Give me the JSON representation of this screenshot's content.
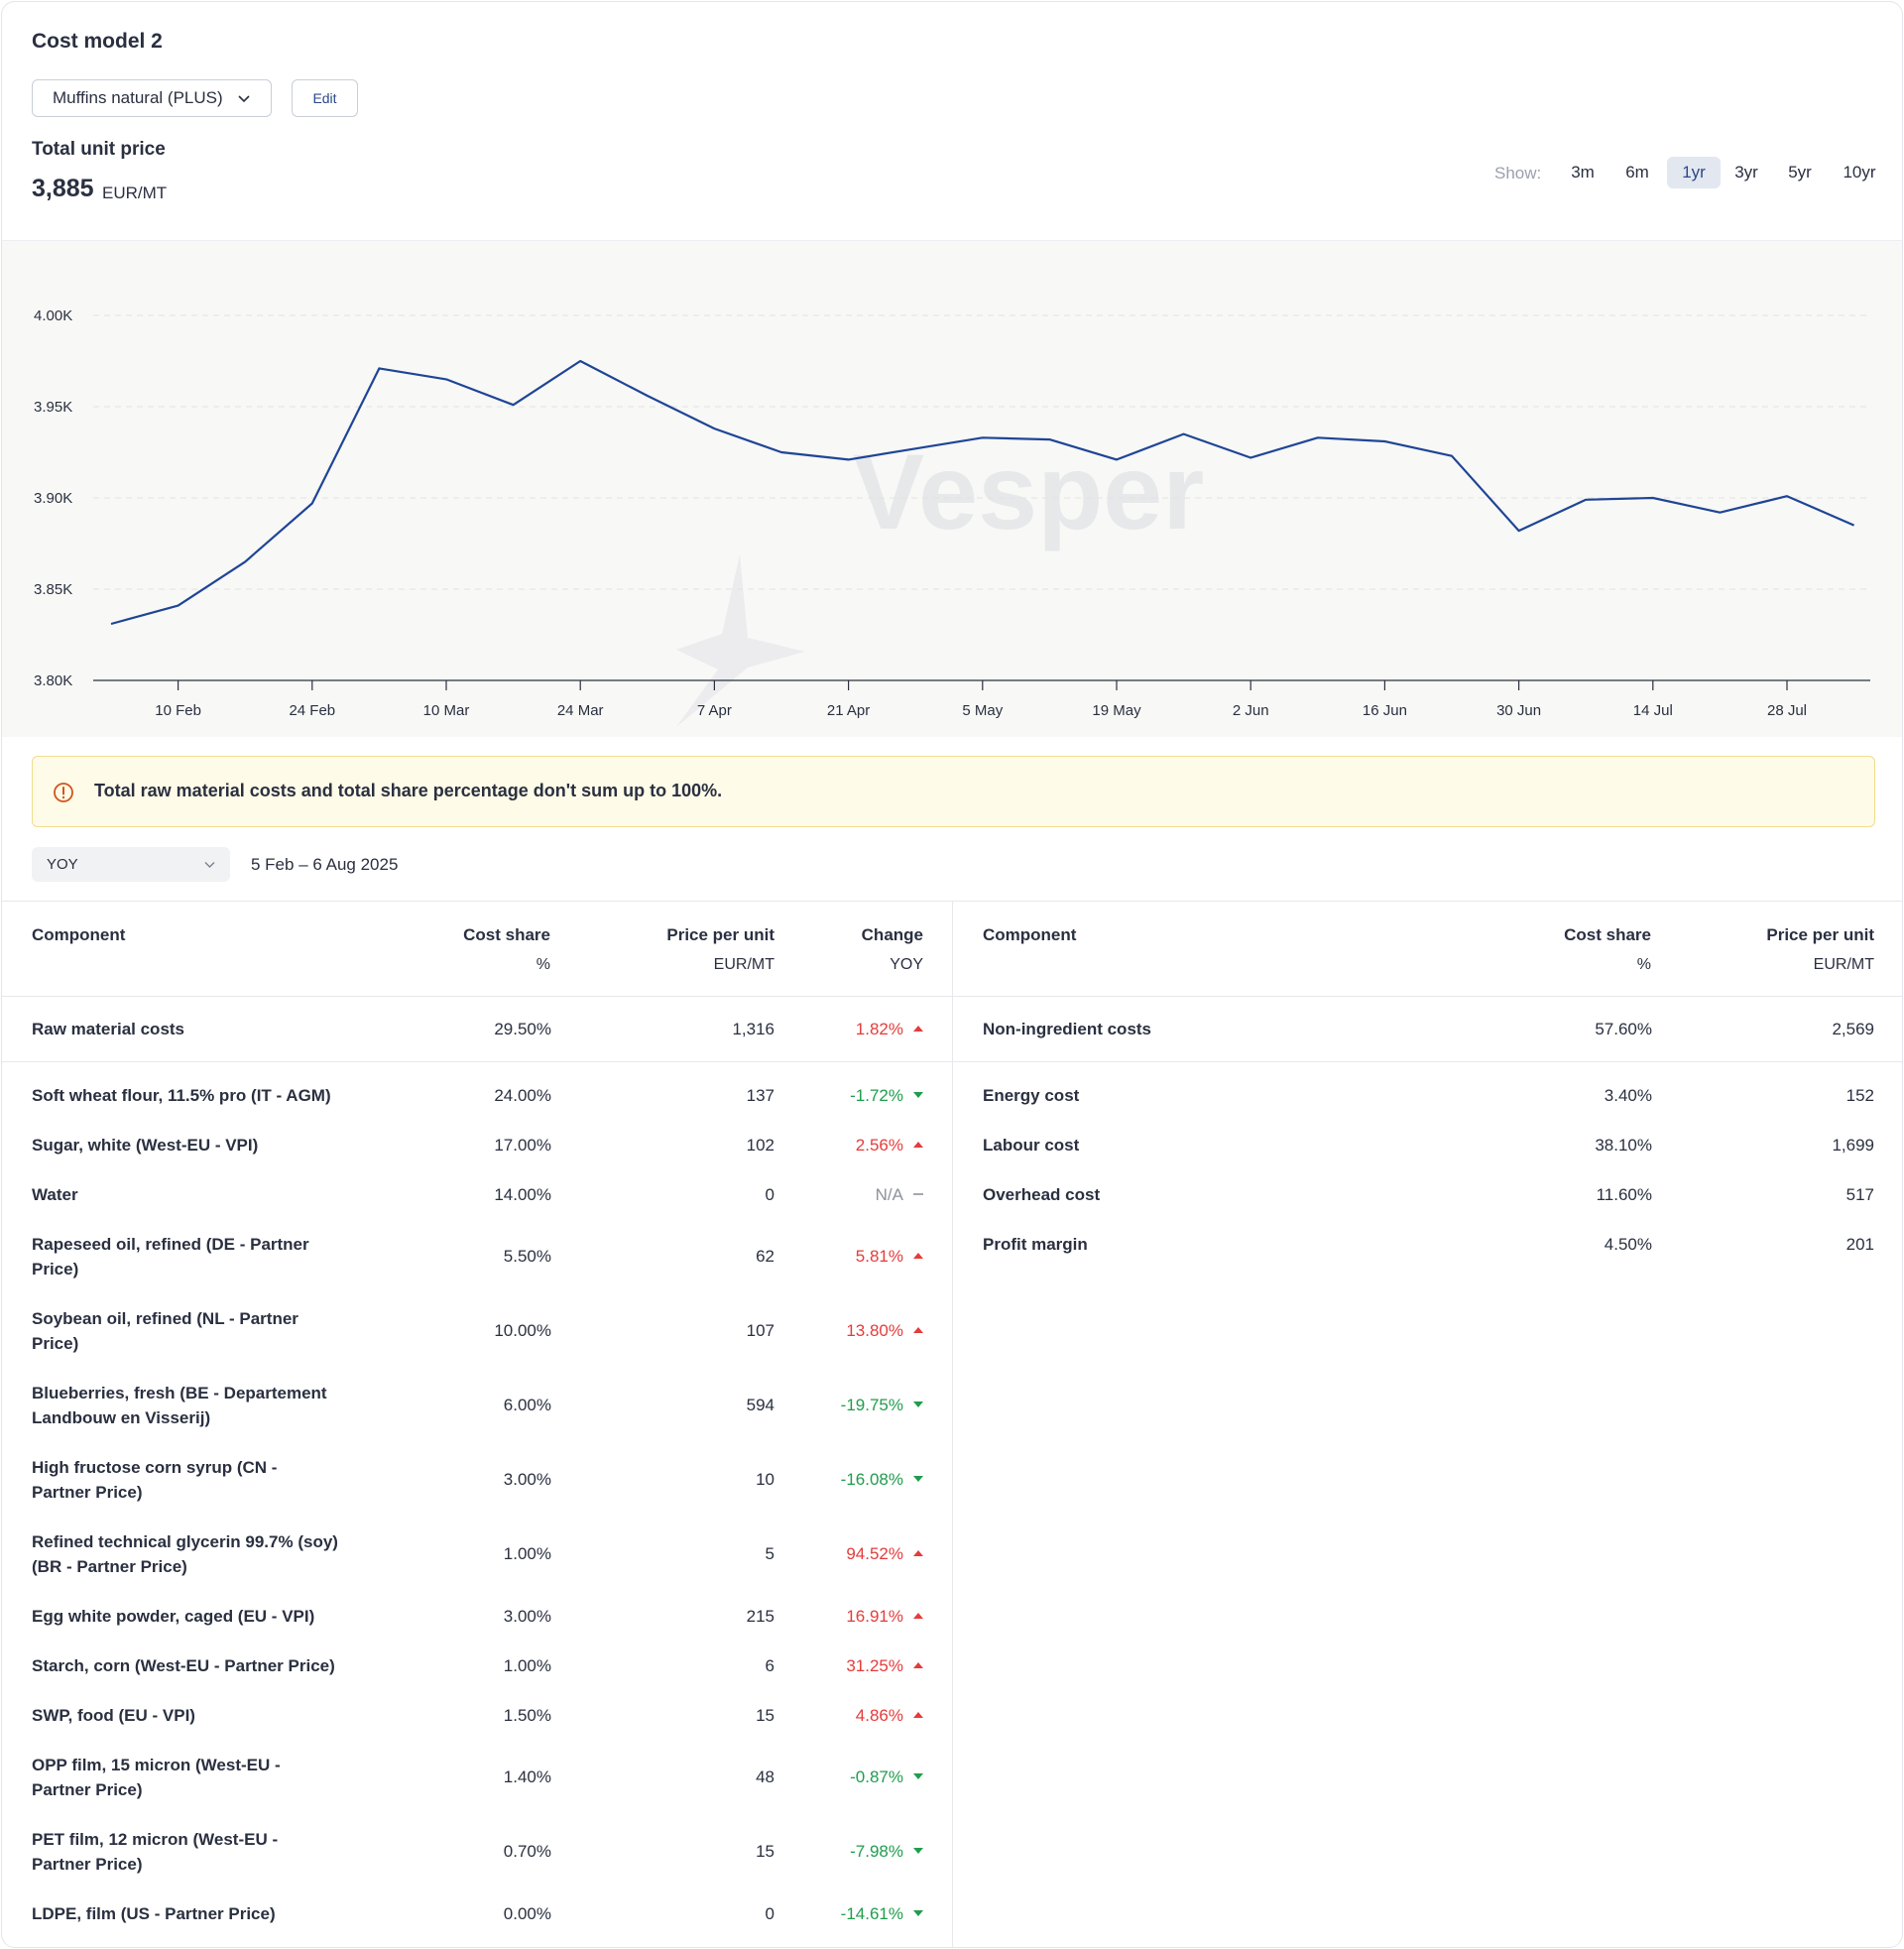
{
  "header": {
    "title": "Cost model 2",
    "product_select": "Muffins natural (PLUS)",
    "edit_label": "Edit",
    "total_label": "Total unit price",
    "total_value": "3,885",
    "total_unit": "EUR/MT",
    "show_label": "Show:",
    "ranges": [
      "3m",
      "6m",
      "1yr",
      "3yr",
      "5yr",
      "10yr"
    ],
    "active_range": "1yr"
  },
  "chart_data": {
    "type": "line",
    "x": [
      "3 Feb",
      "10 Feb",
      "17 Feb",
      "24 Feb",
      "3 Mar",
      "10 Mar",
      "17 Mar",
      "24 Mar",
      "31 Mar",
      "7 Apr",
      "14 Apr",
      "21 Apr",
      "28 Apr",
      "5 May",
      "12 May",
      "19 May",
      "26 May",
      "2 Jun",
      "9 Jun",
      "16 Jun",
      "23 Jun",
      "30 Jun",
      "7 Jul",
      "14 Jul",
      "21 Jul",
      "28 Jul",
      "4 Aug"
    ],
    "series": [
      {
        "values": [
          3831,
          3841,
          3865,
          3897,
          3971,
          3965,
          3951,
          3975,
          3956,
          3938,
          3925,
          3921,
          3927,
          3933,
          3932,
          3921,
          3935,
          3922,
          3933,
          3931,
          3923,
          3882,
          3899,
          3900,
          3892,
          3901,
          3885
        ]
      }
    ],
    "x_tick_labels": [
      "10 Feb",
      "24 Feb",
      "10 Mar",
      "24 Mar",
      "7 Apr",
      "21 Apr",
      "5 May",
      "19 May",
      "2 Jun",
      "16 Jun",
      "30 Jun",
      "14 Jul",
      "28 Jul"
    ],
    "y_tick_labels": [
      "4.00K",
      "3.95K",
      "3.90K",
      "3.85K",
      "3.80K"
    ],
    "ylim": [
      3800,
      4000
    ],
    "grid": true,
    "line_color": "#1f4596",
    "watermark": "Vesper"
  },
  "warning": {
    "icon": "alert-circle-icon",
    "text": "Total raw material costs and total share percentage don't sum up to 100%."
  },
  "comparison": {
    "selected": "YOY",
    "date_range": "5 Feb – 6 Aug 2025"
  },
  "raw_table": {
    "headers": [
      "Component",
      "Cost share",
      "Price per unit",
      "Change"
    ],
    "subheaders": [
      "",
      "%",
      "EUR/MT",
      "YOY"
    ],
    "total": {
      "component": "Raw material costs",
      "share": "29.50%",
      "price": "1,316",
      "change": "1.82%",
      "dir": "up"
    },
    "rows": [
      {
        "component": "Soft wheat flour, 11.5% pro (IT - AGM)",
        "share": "24.00%",
        "price": "137",
        "change": "-1.72%",
        "dir": "down"
      },
      {
        "component": "Sugar, white (West-EU - VPI)",
        "share": "17.00%",
        "price": "102",
        "change": "2.56%",
        "dir": "up"
      },
      {
        "component": "Water",
        "share": "14.00%",
        "price": "0",
        "change": "N/A",
        "dir": "none"
      },
      {
        "component": "Rapeseed oil, refined (DE - Partner\nPrice)",
        "share": "5.50%",
        "price": "62",
        "change": "5.81%",
        "dir": "up"
      },
      {
        "component": "Soybean oil, refined (NL - Partner\nPrice)",
        "share": "10.00%",
        "price": "107",
        "change": "13.80%",
        "dir": "up"
      },
      {
        "component": "Blueberries, fresh (BE - Departement\nLandbouw en Visserij)",
        "share": "6.00%",
        "price": "594",
        "change": "-19.75%",
        "dir": "down"
      },
      {
        "component": "High fructose corn syrup (CN -\nPartner Price)",
        "share": "3.00%",
        "price": "10",
        "change": "-16.08%",
        "dir": "down"
      },
      {
        "component": "Refined technical glycerin 99.7% (soy)\n(BR - Partner Price)",
        "share": "1.00%",
        "price": "5",
        "change": "94.52%",
        "dir": "up"
      },
      {
        "component": "Egg white powder, caged (EU - VPI)",
        "share": "3.00%",
        "price": "215",
        "change": "16.91%",
        "dir": "up"
      },
      {
        "component": "Starch, corn (West-EU - Partner Price)",
        "share": "1.00%",
        "price": "6",
        "change": "31.25%",
        "dir": "up"
      },
      {
        "component": "SWP, food (EU - VPI)",
        "share": "1.50%",
        "price": "15",
        "change": "4.86%",
        "dir": "up"
      },
      {
        "component": "OPP film, 15 micron (West-EU -\nPartner Price)",
        "share": "1.40%",
        "price": "48",
        "change": "-0.87%",
        "dir": "down"
      },
      {
        "component": "PET film, 12 micron (West-EU -\nPartner Price)",
        "share": "0.70%",
        "price": "15",
        "change": "-7.98%",
        "dir": "down"
      },
      {
        "component": "LDPE, film (US - Partner Price)",
        "share": "0.00%",
        "price": "0",
        "change": "-14.61%",
        "dir": "down"
      }
    ]
  },
  "nonraw_table": {
    "headers": [
      "Component",
      "Cost share",
      "Price per unit"
    ],
    "subheaders": [
      "",
      "%",
      "EUR/MT"
    ],
    "total": {
      "component": "Non-ingredient costs",
      "share": "57.60%",
      "price": "2,569"
    },
    "rows": [
      {
        "component": "Energy cost",
        "share": "3.40%",
        "price": "152"
      },
      {
        "component": "Labour cost",
        "share": "38.10%",
        "price": "1,699"
      },
      {
        "component": "Overhead cost",
        "share": "11.60%",
        "price": "517"
      },
      {
        "component": "Profit margin",
        "share": "4.50%",
        "price": "201"
      }
    ]
  },
  "colors": {
    "up": "#e53b3b",
    "down": "#1f9d4d",
    "neutral": "#8d929c",
    "accent": "#2b4a8a"
  }
}
